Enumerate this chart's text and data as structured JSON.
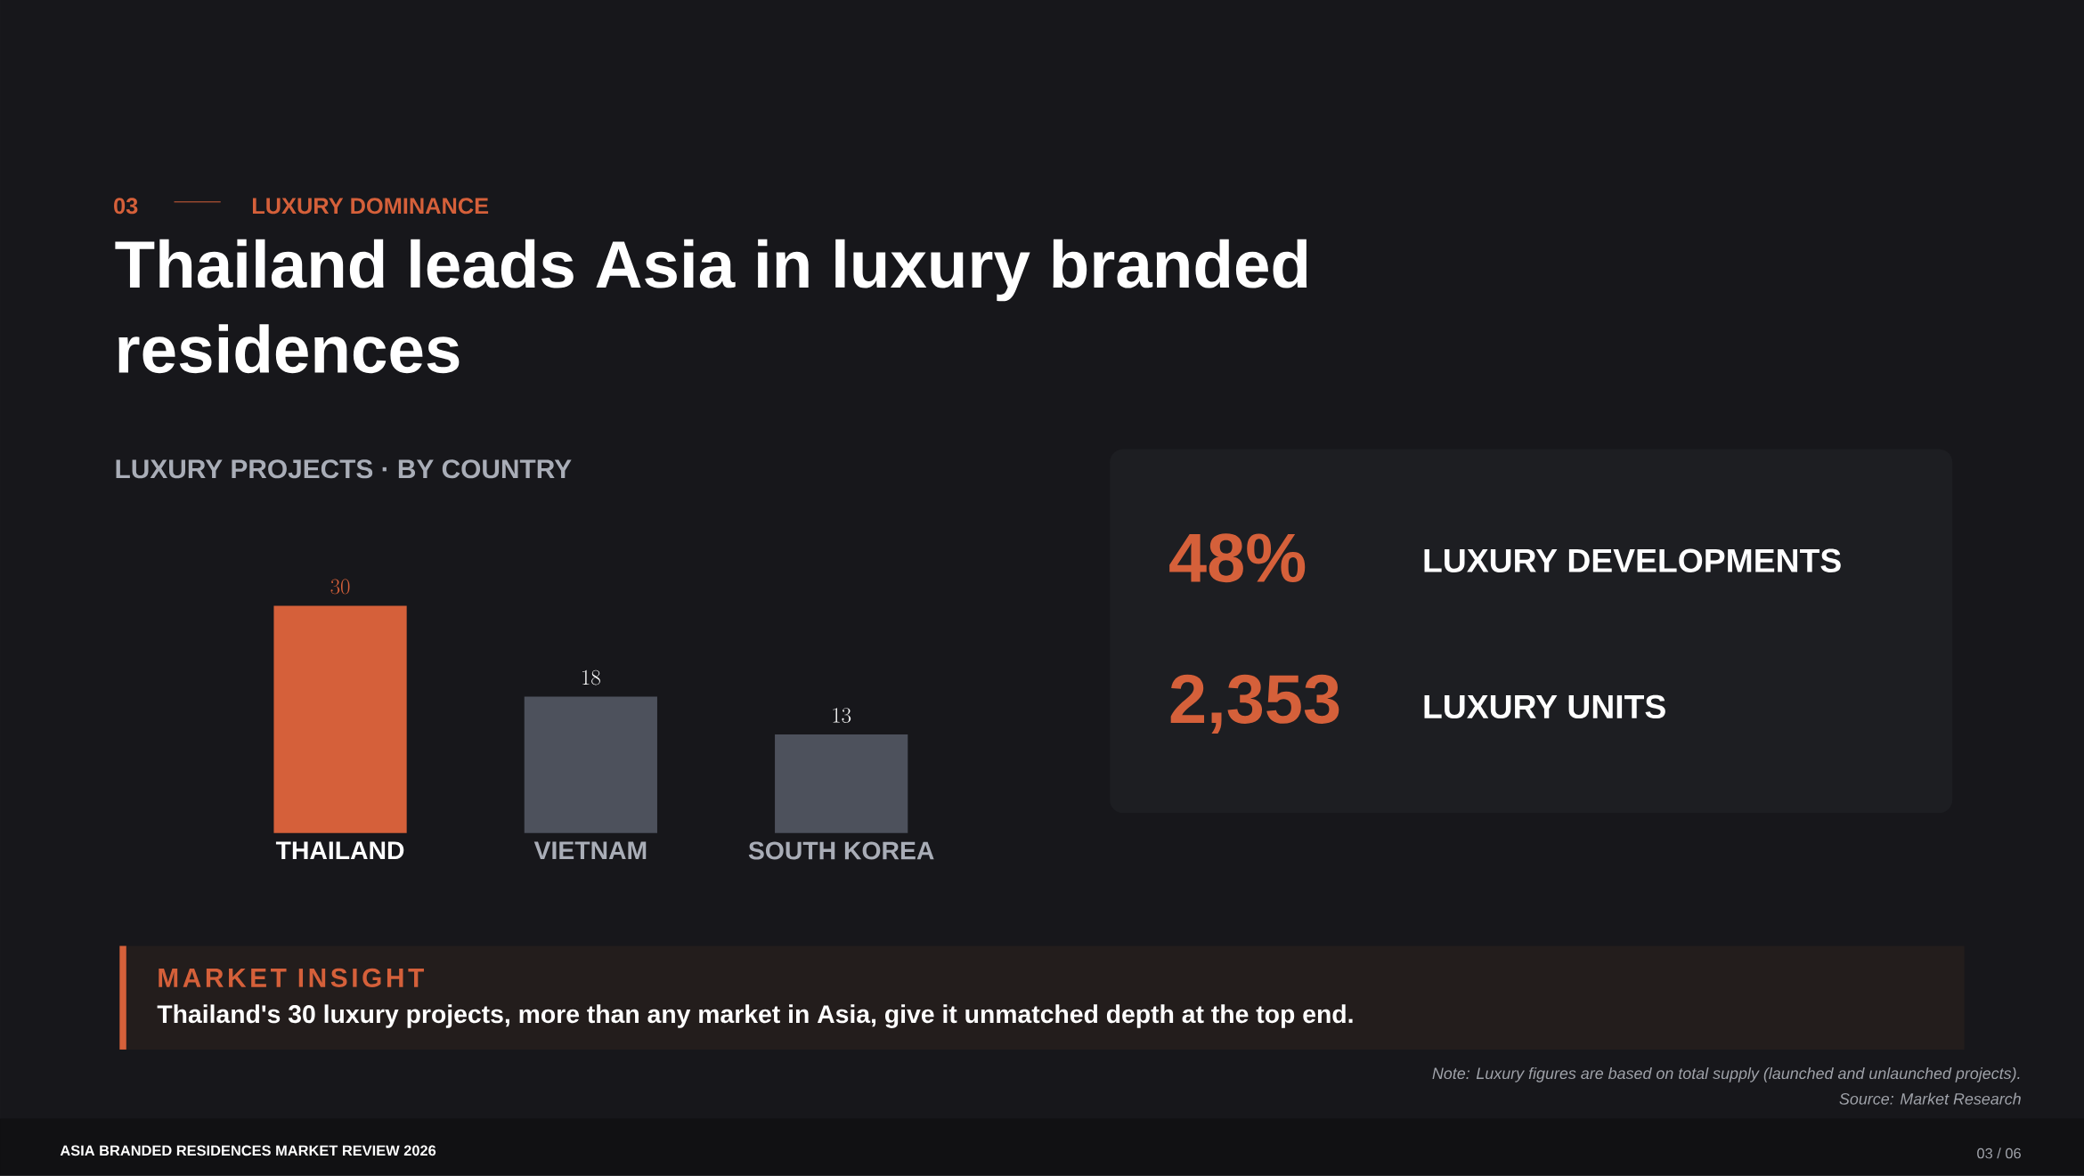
{
  "chart_data": [
    {
      "type": "bar",
      "title": "Thailand leads Asia in luxury branded residences",
      "subtitle": "LUXURY PROJECTS  ·  BY COUNTRY",
      "categories": [
        "THAILAND",
        "VIETNAM",
        "SOUTH KOREA"
      ],
      "values": [
        30,
        18,
        13
      ],
      "colors": [
        "#d5603a",
        "#4d515c",
        "#4d515c"
      ],
      "ylim": [
        0,
        30
      ],
      "data_labels": true,
      "annotations": [
        "03",
        "LUXURY DOMINANCE",
        "MARKET INSIGHT",
        "Thailand's 30 luxury projects, more than any market in Asia, give it unmatched depth at the top end.",
        "Note: Luxury figures are based on total supply (launched and unlaunched projects).",
        "Source: Market Research",
        "ASIA BRANDED RESIDENCES MARKET REVIEW 2026",
        "03 / 06"
      ]
    },
    {
      "type": "other",
      "annotations": [
        "48%",
        "LUXURY DEVELOPMENTS",
        "2,353",
        "LUXURY UNITS"
      ]
    }
  ]
}
